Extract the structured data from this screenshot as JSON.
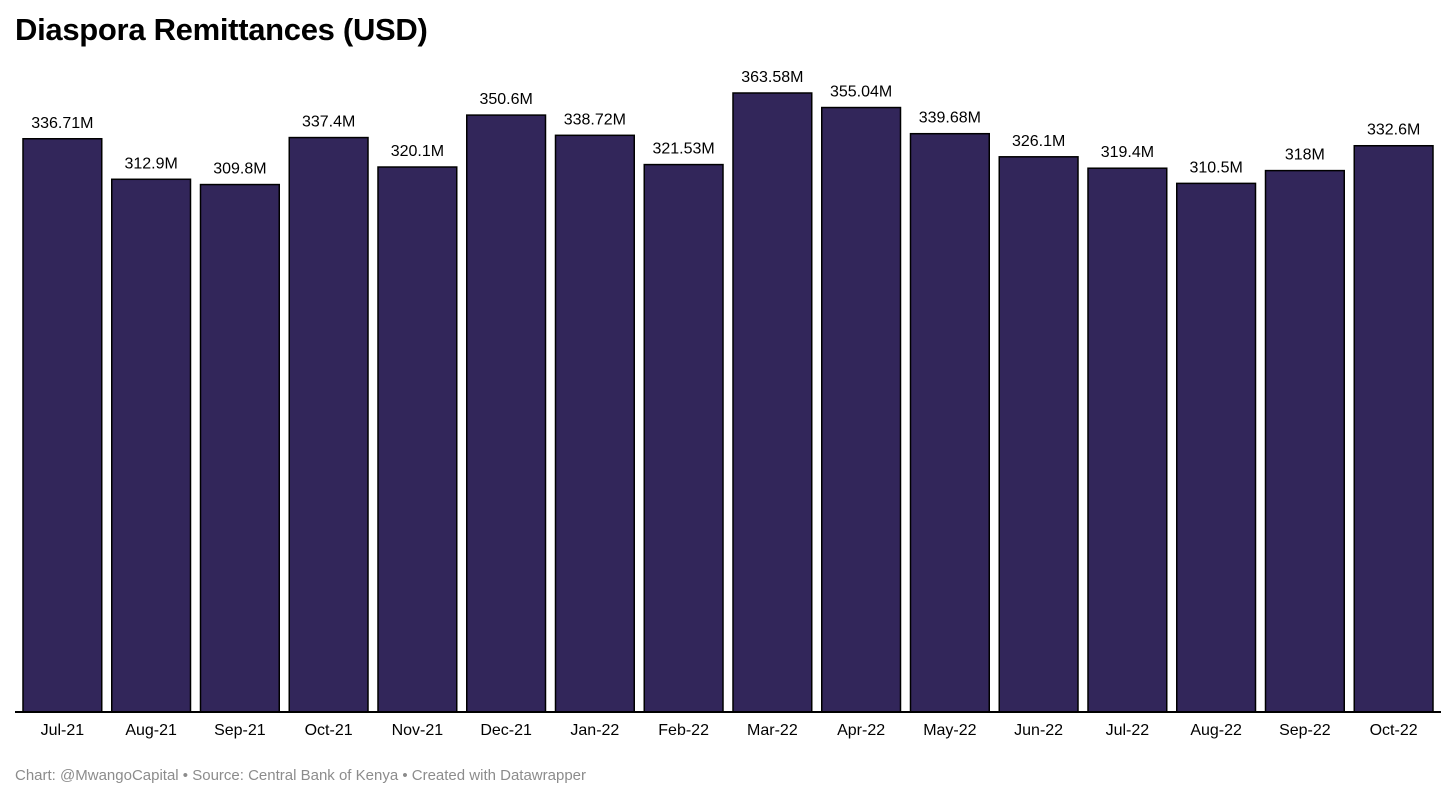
{
  "chart_data": {
    "type": "bar",
    "title": "Diaspora Remittances (USD)",
    "xlabel": "",
    "ylabel": "",
    "categories": [
      "Jul-21",
      "Aug-21",
      "Sep-21",
      "Oct-21",
      "Nov-21",
      "Dec-21",
      "Jan-22",
      "Feb-22",
      "Mar-22",
      "Apr-22",
      "May-22",
      "Jun-22",
      "Jul-22",
      "Aug-22",
      "Sep-22",
      "Oct-22"
    ],
    "values": [
      336.71,
      312.9,
      309.8,
      337.4,
      320.1,
      350.6,
      338.72,
      321.53,
      363.58,
      355.04,
      339.68,
      326.1,
      319.4,
      310.5,
      318,
      332.6
    ],
    "value_labels": [
      "336.71M",
      "312.9M",
      "309.8M",
      "337.4M",
      "320.1M",
      "350.6M",
      "338.72M",
      "321.53M",
      "363.58M",
      "355.04M",
      "339.68M",
      "326.1M",
      "319.4M",
      "310.5M",
      "318M",
      "332.6M"
    ],
    "ylim": [
      0,
      363.58
    ],
    "grid": false,
    "legend": "none",
    "bar_color": "#32265a",
    "bar_outline_color": "#000000"
  },
  "footer": {
    "text": "Chart: @MwangoCapital • Source: Central Bank of Kenya • Created with Datawrapper"
  }
}
